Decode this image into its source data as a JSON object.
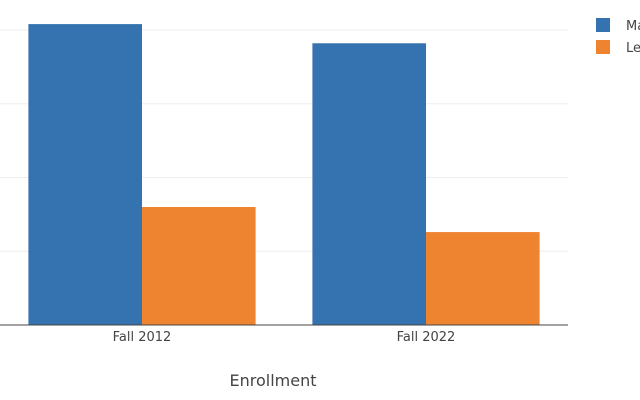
{
  "chart_data": {
    "type": "bar",
    "categories": [
      "Fall 2012",
      "Fall 2022"
    ],
    "xlabel": "Enrollment",
    "ylim": [
      0,
      100
    ],
    "grid": true,
    "legend_position": "top-right",
    "series": [
      {
        "name": "Ma",
        "color": "#3572b0",
        "values": [
          102,
          95.5
        ]
      },
      {
        "name": "Le",
        "color": "#ee8330",
        "values": [
          40,
          31.5
        ]
      }
    ]
  }
}
